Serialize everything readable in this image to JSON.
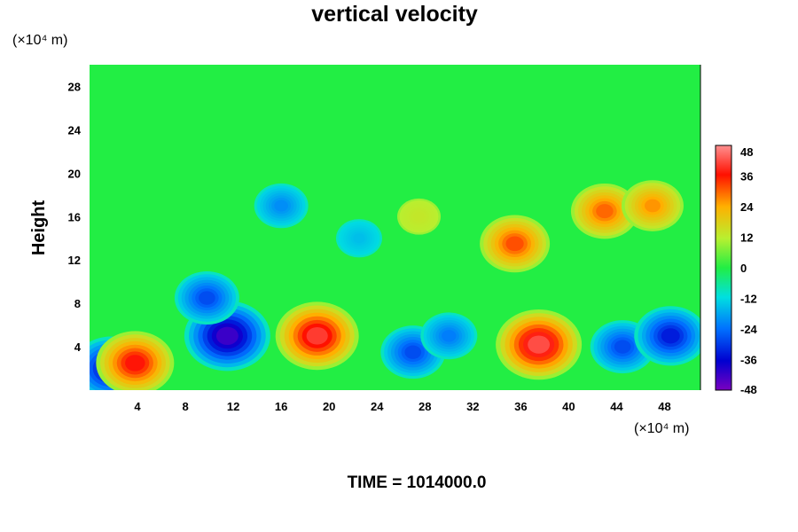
{
  "chart_data": {
    "type": "heatmap",
    "title": "vertical velocity",
    "ylabel": "Height",
    "y_unit": "(×10⁴ m)",
    "x_unit": "(×10⁴ m)",
    "xlim": [
      0,
      51
    ],
    "ylim": [
      0,
      30
    ],
    "x_ticks": [
      "4",
      "8",
      "12",
      "16",
      "20",
      "24",
      "28",
      "32",
      "36",
      "40",
      "44",
      "48"
    ],
    "y_ticks": [
      "4",
      "8",
      "12",
      "16",
      "20",
      "24",
      "28"
    ],
    "colorbar": {
      "range": [
        -48,
        48
      ],
      "ticks": [
        "48",
        "36",
        "24",
        "12",
        "0",
        "-12",
        "-24",
        "-36",
        "-48"
      ]
    },
    "features": [
      {
        "x": 1.8,
        "y": 2.0,
        "value": -40
      },
      {
        "x": 3.8,
        "y": 2.5,
        "value": 40
      },
      {
        "x": 11.5,
        "y": 5.0,
        "value": -46
      },
      {
        "x": 9.8,
        "y": 8.5,
        "value": -30
      },
      {
        "x": 19.0,
        "y": 5.0,
        "value": 44
      },
      {
        "x": 27.0,
        "y": 3.5,
        "value": -30
      },
      {
        "x": 30.0,
        "y": 5.0,
        "value": -24
      },
      {
        "x": 37.5,
        "y": 4.2,
        "value": 46
      },
      {
        "x": 44.5,
        "y": 4.0,
        "value": -30
      },
      {
        "x": 48.5,
        "y": 5.0,
        "value": -36
      },
      {
        "x": 35.5,
        "y": 13.5,
        "value": 34
      },
      {
        "x": 43.0,
        "y": 16.5,
        "value": 32
      },
      {
        "x": 47.0,
        "y": 17.0,
        "value": 28
      },
      {
        "x": 27.5,
        "y": 16.0,
        "value": 14
      },
      {
        "x": 16.0,
        "y": 17.0,
        "value": -22
      },
      {
        "x": 22.5,
        "y": 14.0,
        "value": -16
      }
    ],
    "footer": "TIME = 1014000.0"
  }
}
